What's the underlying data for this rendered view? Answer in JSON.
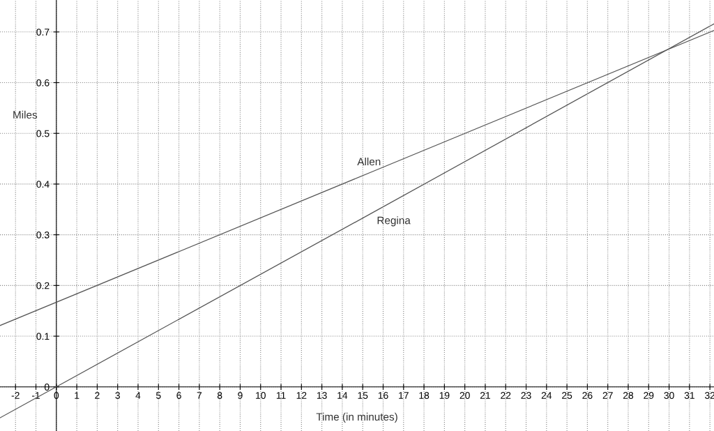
{
  "chart_data": {
    "type": "line",
    "xlabel": "Time (in minutes)",
    "ylabel": "Miles",
    "x": [
      -2.76,
      15.5,
      32.2
    ],
    "series": [
      {
        "name": "Allen",
        "color": "#555555",
        "values": [
          0.121,
          0.425,
          0.703
        ]
      },
      {
        "name": "Regina",
        "color": "#555555",
        "values": [
          -0.061,
          0.344,
          0.716
        ]
      }
    ],
    "xlim": [
      -2.76,
      32.2
    ],
    "ylim": [
      -0.087,
      0.763
    ],
    "xticks": [
      -2,
      -1,
      0,
      1,
      2,
      3,
      4,
      5,
      6,
      7,
      8,
      9,
      10,
      11,
      12,
      13,
      14,
      15,
      16,
      17,
      18,
      19,
      20,
      21,
      22,
      23,
      24,
      25,
      26,
      27,
      28,
      29,
      30,
      31,
      32
    ],
    "yticks": [
      0,
      0.1,
      0.2,
      0.3,
      0.4,
      0.5,
      0.6,
      0.7
    ],
    "grid": true,
    "legend": false,
    "marker": "none",
    "line_style": "solid"
  }
}
